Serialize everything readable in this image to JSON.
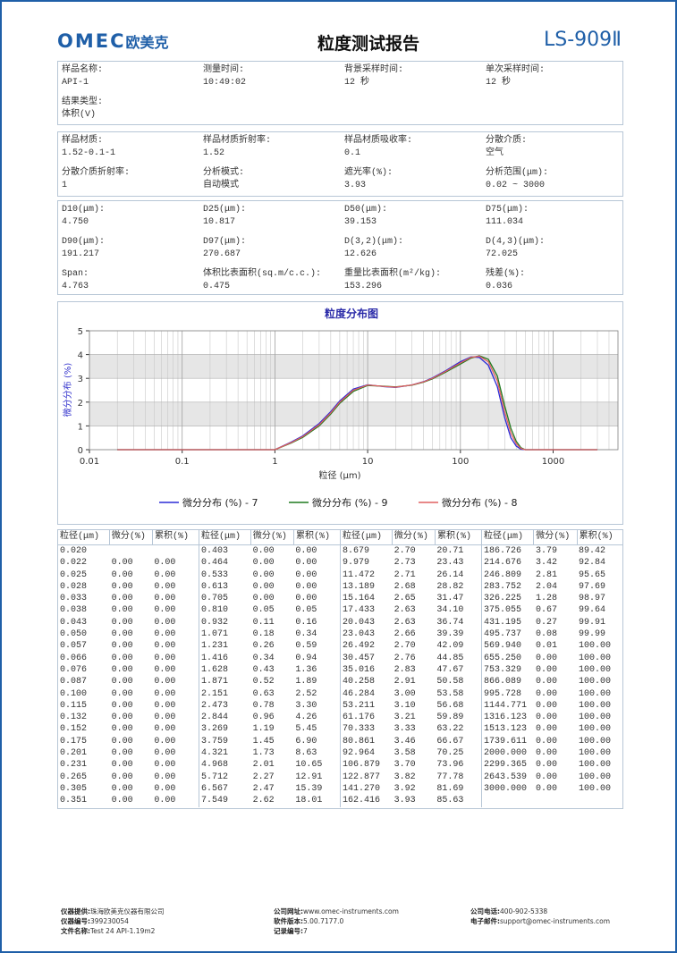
{
  "header": {
    "logo": "OMEC",
    "logo_cn": "欧美克",
    "title": "粒度测试报告",
    "model": "LS-909Ⅱ"
  },
  "sections": [
    {
      "fields": [
        {
          "label": "样品名称:",
          "value": "API-1"
        },
        {
          "label": "测量时间:",
          "value": "10:49:02"
        },
        {
          "label": "背景采样时间:",
          "value": "12 秒"
        },
        {
          "label": "单次采样时间:",
          "value": "12 秒"
        },
        {
          "label": "结果类型:",
          "value": "体积(V)"
        }
      ]
    },
    {
      "fields": [
        {
          "label": "样品材质:",
          "value": "1.52-0.1-1"
        },
        {
          "label": "样品材质折射率:",
          "value": "1.52"
        },
        {
          "label": "样品材质吸收率:",
          "value": "0.1"
        },
        {
          "label": "分散介质:",
          "value": "空气"
        },
        {
          "label": "分散介质折射率:",
          "value": "1"
        },
        {
          "label": "分析模式:",
          "value": "自动模式"
        },
        {
          "label": "遮光率(%):",
          "value": "3.93"
        },
        {
          "label": "分析范围(μm):",
          "value": "0.02 ~ 3000"
        }
      ]
    },
    {
      "fields": [
        {
          "label": "D10(μm):",
          "value": "4.750"
        },
        {
          "label": "D25(μm):",
          "value": "10.817"
        },
        {
          "label": "D50(μm):",
          "value": "39.153"
        },
        {
          "label": "D75(μm):",
          "value": "111.034"
        },
        {
          "label": "D90(μm):",
          "value": "191.217"
        },
        {
          "label": "D97(μm):",
          "value": "270.687"
        },
        {
          "label": "D(3,2)(μm):",
          "value": "12.626"
        },
        {
          "label": "D(4,3)(μm):",
          "value": "72.025"
        },
        {
          "label": "Span:",
          "value": "4.763"
        },
        {
          "label": "体积比表面积(sq.m/c.c.):",
          "value": "0.475"
        },
        {
          "label": "重量比表面积(m²/kg):",
          "value": "153.296"
        },
        {
          "label": "残差(%):",
          "value": "0.036"
        }
      ]
    }
  ],
  "chart_data": {
    "type": "line",
    "title": "粒度分布图",
    "x_label": "粒径 (μm)",
    "y_label": "微分分布 (%)",
    "x_scale": "log",
    "grid": true,
    "xlim": [
      0.01,
      5000
    ],
    "xticks": [
      0.01,
      0.1,
      1,
      10,
      100,
      1000
    ],
    "ylim": [
      0,
      5
    ],
    "yticks": [
      0,
      1,
      2,
      3,
      4,
      5
    ],
    "x": [
      0.02,
      0.5,
      1,
      1.5,
      2,
      3,
      4,
      5,
      7,
      10,
      15,
      20,
      30,
      40,
      50,
      70,
      100,
      130,
      160,
      200,
      250,
      300,
      350,
      400,
      450,
      500,
      1000,
      3000
    ],
    "series": [
      {
        "name": "微分分布 (%) - 7",
        "color": "#2b2bd6",
        "values": [
          0,
          0,
          0,
          0.32,
          0.58,
          1.1,
          1.6,
          2.05,
          2.55,
          2.73,
          2.65,
          2.62,
          2.72,
          2.86,
          3.02,
          3.33,
          3.7,
          3.9,
          3.88,
          3.55,
          2.65,
          1.35,
          0.5,
          0.15,
          0.02,
          0,
          0,
          0
        ]
      },
      {
        "name": "微分分布 (%) - 9",
        "color": "#1e7a1e",
        "values": [
          0,
          0,
          0,
          0.28,
          0.52,
          1.0,
          1.5,
          1.95,
          2.45,
          2.7,
          2.67,
          2.64,
          2.71,
          2.84,
          2.98,
          3.27,
          3.6,
          3.85,
          3.95,
          3.8,
          3.1,
          1.85,
          0.9,
          0.35,
          0.08,
          0,
          0,
          0
        ]
      },
      {
        "name": "微分分布 (%) - 8",
        "color": "#e06060",
        "values": [
          0,
          0,
          0,
          0.3,
          0.55,
          1.05,
          1.55,
          2.0,
          2.5,
          2.72,
          2.66,
          2.63,
          2.72,
          2.85,
          3.0,
          3.3,
          3.65,
          3.88,
          3.93,
          3.7,
          2.9,
          1.6,
          0.7,
          0.25,
          0.05,
          0,
          0,
          0
        ]
      }
    ]
  },
  "table": {
    "headers": [
      "粒径(μm)",
      "微分(%)",
      "累积(%)"
    ],
    "groups": [
      [
        [
          "0.020",
          null,
          null
        ],
        [
          "0.022",
          "0.00",
          "0.00"
        ],
        [
          "0.025",
          "0.00",
          "0.00"
        ],
        [
          "0.028",
          "0.00",
          "0.00"
        ],
        [
          "0.033",
          "0.00",
          "0.00"
        ],
        [
          "0.038",
          "0.00",
          "0.00"
        ],
        [
          "0.043",
          "0.00",
          "0.00"
        ],
        [
          "0.050",
          "0.00",
          "0.00"
        ],
        [
          "0.057",
          "0.00",
          "0.00"
        ],
        [
          "0.066",
          "0.00",
          "0.00"
        ],
        [
          "0.076",
          "0.00",
          "0.00"
        ],
        [
          "0.087",
          "0.00",
          "0.00"
        ],
        [
          "0.100",
          "0.00",
          "0.00"
        ],
        [
          "0.115",
          "0.00",
          "0.00"
        ],
        [
          "0.132",
          "0.00",
          "0.00"
        ],
        [
          "0.152",
          "0.00",
          "0.00"
        ],
        [
          "0.175",
          "0.00",
          "0.00"
        ],
        [
          "0.201",
          "0.00",
          "0.00"
        ],
        [
          "0.231",
          "0.00",
          "0.00"
        ],
        [
          "0.265",
          "0.00",
          "0.00"
        ],
        [
          "0.305",
          "0.00",
          "0.00"
        ],
        [
          "0.351",
          "0.00",
          "0.00"
        ]
      ],
      [
        [
          "0.403",
          "0.00",
          "0.00"
        ],
        [
          "0.464",
          "0.00",
          "0.00"
        ],
        [
          "0.533",
          "0.00",
          "0.00"
        ],
        [
          "0.613",
          "0.00",
          "0.00"
        ],
        [
          "0.705",
          "0.00",
          "0.00"
        ],
        [
          "0.810",
          "0.05",
          "0.05"
        ],
        [
          "0.932",
          "0.11",
          "0.16"
        ],
        [
          "1.071",
          "0.18",
          "0.34"
        ],
        [
          "1.231",
          "0.26",
          "0.59"
        ],
        [
          "1.416",
          "0.34",
          "0.94"
        ],
        [
          "1.628",
          "0.43",
          "1.36"
        ],
        [
          "1.871",
          "0.52",
          "1.89"
        ],
        [
          "2.151",
          "0.63",
          "2.52"
        ],
        [
          "2.473",
          "0.78",
          "3.30"
        ],
        [
          "2.844",
          "0.96",
          "4.26"
        ],
        [
          "3.269",
          "1.19",
          "5.45"
        ],
        [
          "3.759",
          "1.45",
          "6.90"
        ],
        [
          "4.321",
          "1.73",
          "8.63"
        ],
        [
          "4.968",
          "2.01",
          "10.65"
        ],
        [
          "5.712",
          "2.27",
          "12.91"
        ],
        [
          "6.567",
          "2.47",
          "15.39"
        ],
        [
          "7.549",
          "2.62",
          "18.01"
        ]
      ],
      [
        [
          "8.679",
          "2.70",
          "20.71"
        ],
        [
          "9.979",
          "2.73",
          "23.43"
        ],
        [
          "11.472",
          "2.71",
          "26.14"
        ],
        [
          "13.189",
          "2.68",
          "28.82"
        ],
        [
          "15.164",
          "2.65",
          "31.47"
        ],
        [
          "17.433",
          "2.63",
          "34.10"
        ],
        [
          "20.043",
          "2.63",
          "36.74"
        ],
        [
          "23.043",
          "2.66",
          "39.39"
        ],
        [
          "26.492",
          "2.70",
          "42.09"
        ],
        [
          "30.457",
          "2.76",
          "44.85"
        ],
        [
          "35.016",
          "2.83",
          "47.67"
        ],
        [
          "40.258",
          "2.91",
          "50.58"
        ],
        [
          "46.284",
          "3.00",
          "53.58"
        ],
        [
          "53.211",
          "3.10",
          "56.68"
        ],
        [
          "61.176",
          "3.21",
          "59.89"
        ],
        [
          "70.333",
          "3.33",
          "63.22"
        ],
        [
          "80.861",
          "3.46",
          "66.67"
        ],
        [
          "92.964",
          "3.58",
          "70.25"
        ],
        [
          "106.879",
          "3.70",
          "73.96"
        ],
        [
          "122.877",
          "3.82",
          "77.78"
        ],
        [
          "141.270",
          "3.92",
          "81.69"
        ],
        [
          "162.416",
          "3.93",
          "85.63"
        ]
      ],
      [
        [
          "186.726",
          "3.79",
          "89.42"
        ],
        [
          "214.676",
          "3.42",
          "92.84"
        ],
        [
          "246.809",
          "2.81",
          "95.65"
        ],
        [
          "283.752",
          "2.04",
          "97.69"
        ],
        [
          "326.225",
          "1.28",
          "98.97"
        ],
        [
          "375.055",
          "0.67",
          "99.64"
        ],
        [
          "431.195",
          "0.27",
          "99.91"
        ],
        [
          "495.737",
          "0.08",
          "99.99"
        ],
        [
          "569.940",
          "0.01",
          "100.00"
        ],
        [
          "655.250",
          "0.00",
          "100.00"
        ],
        [
          "753.329",
          "0.00",
          "100.00"
        ],
        [
          "866.089",
          "0.00",
          "100.00"
        ],
        [
          "995.728",
          "0.00",
          "100.00"
        ],
        [
          "1144.771",
          "0.00",
          "100.00"
        ],
        [
          "1316.123",
          "0.00",
          "100.00"
        ],
        [
          "1513.123",
          "0.00",
          "100.00"
        ],
        [
          "1739.611",
          "0.00",
          "100.00"
        ],
        [
          "2000.000",
          "0.00",
          "100.00"
        ],
        [
          "2299.365",
          "0.00",
          "100.00"
        ],
        [
          "2643.539",
          "0.00",
          "100.00"
        ],
        [
          "3000.000",
          "0.00",
          "100.00"
        ]
      ]
    ]
  },
  "footer": {
    "fields": [
      {
        "label": "仪器提供:",
        "value": "珠海欧美克仪器有限公司"
      },
      {
        "label": "仪器编号:",
        "value": "399230054"
      },
      {
        "label": "文件名称:",
        "value": "Test 24 API-1.19m2"
      },
      {
        "label": "公司网址:",
        "value": "www.omec-instruments.com"
      },
      {
        "label": "软件版本:",
        "value": "5.00.7177.0"
      },
      {
        "label": "记录编号:",
        "value": "7"
      },
      {
        "label": "公司电话:",
        "value": "400-902-5338"
      },
      {
        "label": "电子邮件:",
        "value": "support@omec-instruments.com"
      }
    ]
  }
}
